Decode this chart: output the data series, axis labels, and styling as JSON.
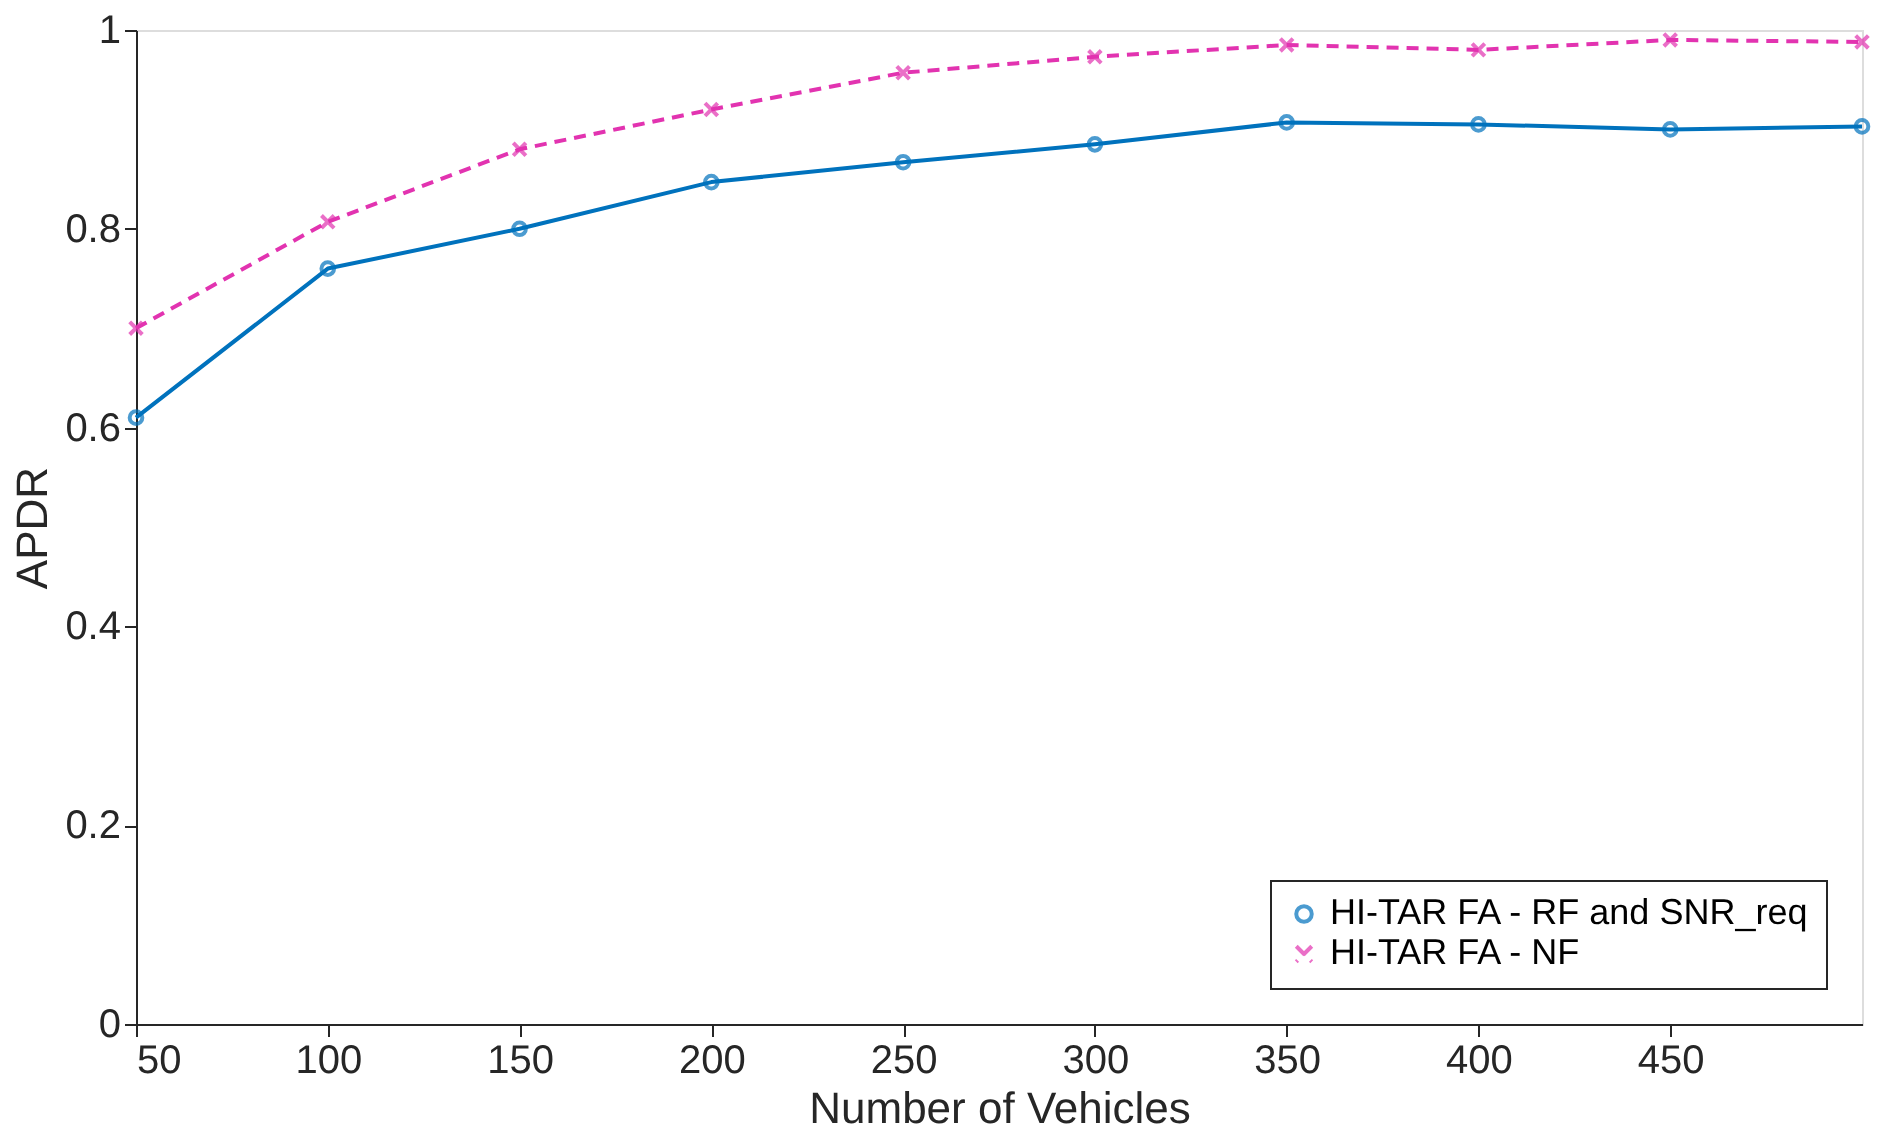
{
  "chart_data": {
    "type": "line",
    "xlabel": "Number of Vehicles",
    "ylabel": "APDR",
    "x": [
      50,
      100,
      150,
      200,
      250,
      300,
      350,
      400,
      450,
      500
    ],
    "series": [
      {
        "name": "HI-TAR FA - RF and SNR_req",
        "color": "#0072bd",
        "marker": "circle",
        "line_style": "solid",
        "values": [
          0.61,
          0.76,
          0.8,
          0.847,
          0.867,
          0.885,
          0.907,
          0.905,
          0.9,
          0.903
        ]
      },
      {
        "name": "HI-TAR FA - NF",
        "color": "#e233b0",
        "marker": "cross",
        "line_style": "dashed",
        "values": [
          0.7,
          0.807,
          0.88,
          0.92,
          0.957,
          0.973,
          0.985,
          0.98,
          0.99,
          0.988
        ]
      }
    ],
    "xlim": [
      50,
      500
    ],
    "xticks": [
      50,
      100,
      150,
      200,
      250,
      300,
      350,
      400,
      450
    ],
    "ylim": [
      0,
      1
    ],
    "yticks": [
      0,
      0.2,
      0.4,
      0.6,
      0.8,
      1
    ],
    "grid": false,
    "legend": "bottom right"
  }
}
